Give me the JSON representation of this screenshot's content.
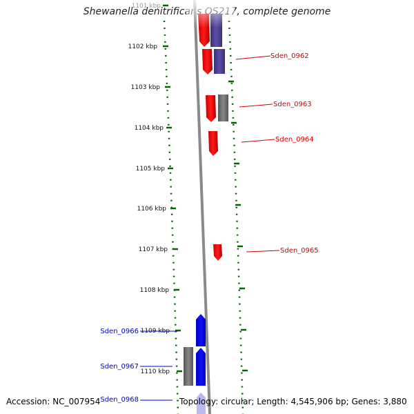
{
  "title": "Shewanella denitrificans OS217, complete genome",
  "footer": {
    "accession": "Accession: NC_007954",
    "summary": "Topology: circular; Length: 4,545,906 bp; Genes: 3,880"
  },
  "colors": {
    "forward_gene": "#ff0000",
    "forward_gene_dark": "#cc0000",
    "reverse_gene": "#0000ee",
    "reverse_gene_dark": "#0000aa",
    "other_gene": "#666666",
    "purple_gene": "#4a3c8c",
    "ruler": "#006600",
    "label_forward": "#cc0000",
    "label_reverse": "#0000cc"
  },
  "ruler_labels": [
    {
      "text": "1101 kbp",
      "kbp": 1101
    },
    {
      "text": "1102 kbp",
      "kbp": 1102
    },
    {
      "text": "1103 kbp",
      "kbp": 1103
    },
    {
      "text": "1104 kbp",
      "kbp": 1104
    },
    {
      "text": "1105 kbp",
      "kbp": 1105
    },
    {
      "text": "1106 kbp",
      "kbp": 1106
    },
    {
      "text": "1107 kbp",
      "kbp": 1107
    },
    {
      "text": "1108 kbp",
      "kbp": 1108
    },
    {
      "text": "1109 kbp",
      "kbp": 1109
    },
    {
      "text": "1110 kbp",
      "kbp": 1110
    }
  ],
  "gene_labels": [
    {
      "text": "Sden_0962",
      "strand": "forward"
    },
    {
      "text": "Sden_0963",
      "strand": "forward"
    },
    {
      "text": "Sden_0964",
      "strand": "forward"
    },
    {
      "text": "Sden_0965",
      "strand": "forward"
    },
    {
      "text": "Sden_0966",
      "strand": "reverse"
    },
    {
      "text": "Sden_0967",
      "strand": "reverse"
    },
    {
      "text": "Sden_0968",
      "strand": "reverse"
    }
  ]
}
